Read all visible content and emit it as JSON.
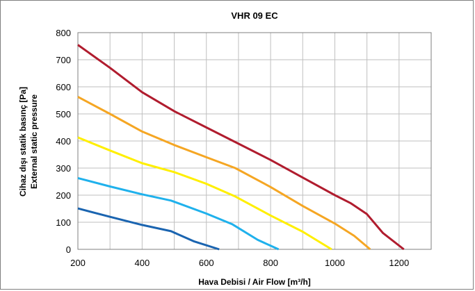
{
  "chart_data": {
    "type": "line",
    "title": "VHR 09 EC",
    "xlabel": "Hava Debisi / Air Flow [m³/h]",
    "ylabel_lines": [
      "Cihaz dışı statik basınç [Pa]",
      "External static pressure"
    ],
    "xlim": [
      200,
      1300
    ],
    "ylim": [
      0,
      800
    ],
    "xticks": [
      200,
      300,
      400,
      500,
      600,
      700,
      800,
      900,
      1000,
      1100,
      1200,
      1300
    ],
    "xtick_labels": [
      "200",
      "",
      "400",
      "",
      "600",
      "",
      "800",
      "",
      "1000",
      "",
      "1200",
      ""
    ],
    "yticks": [
      0,
      100,
      200,
      300,
      400,
      500,
      600,
      700,
      800
    ],
    "ytick_labels": [
      "0",
      "100",
      "200",
      "300",
      "400",
      "500",
      "600",
      "700",
      "800"
    ],
    "grid": true,
    "series": [
      {
        "color": "#b01c2e",
        "points": [
          [
            200,
            755
          ],
          [
            300,
            670
          ],
          [
            400,
            580
          ],
          [
            500,
            510
          ],
          [
            600,
            450
          ],
          [
            700,
            390
          ],
          [
            800,
            330
          ],
          [
            900,
            265
          ],
          [
            1000,
            200
          ],
          [
            1050,
            170
          ],
          [
            1100,
            130
          ],
          [
            1150,
            60
          ],
          [
            1215,
            0
          ]
        ]
      },
      {
        "color": "#f5a623",
        "points": [
          [
            200,
            563
          ],
          [
            300,
            500
          ],
          [
            400,
            435
          ],
          [
            500,
            385
          ],
          [
            600,
            340
          ],
          [
            690,
            300
          ],
          [
            800,
            230
          ],
          [
            900,
            160
          ],
          [
            1000,
            95
          ],
          [
            1060,
            50
          ],
          [
            1110,
            0
          ]
        ]
      },
      {
        "color": "#ffef00",
        "points": [
          [
            200,
            413
          ],
          [
            300,
            365
          ],
          [
            400,
            318
          ],
          [
            500,
            285
          ],
          [
            600,
            242
          ],
          [
            690,
            195
          ],
          [
            800,
            125
          ],
          [
            900,
            65
          ],
          [
            990,
            0
          ]
        ]
      },
      {
        "color": "#1fb1ec",
        "points": [
          [
            200,
            263
          ],
          [
            300,
            232
          ],
          [
            400,
            203
          ],
          [
            490,
            180
          ],
          [
            600,
            132
          ],
          [
            680,
            93
          ],
          [
            760,
            35
          ],
          [
            825,
            0
          ]
        ]
      },
      {
        "color": "#1a64b0",
        "points": [
          [
            200,
            151
          ],
          [
            300,
            120
          ],
          [
            400,
            90
          ],
          [
            490,
            67
          ],
          [
            560,
            30
          ],
          [
            640,
            0
          ]
        ]
      }
    ]
  }
}
